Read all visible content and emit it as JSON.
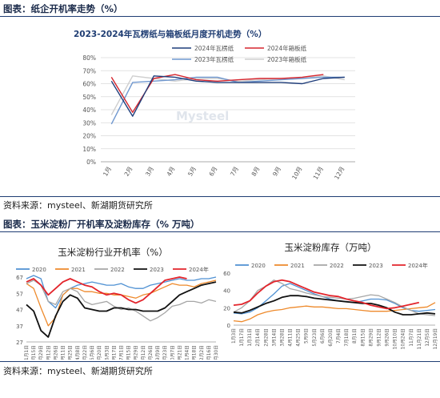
{
  "section1": {
    "caption": "图表：纸企开机率走势（%）",
    "source": "资料来源：mysteel、新湖期货研究所"
  },
  "section2": {
    "caption": "图表：玉米淀粉厂开机率及淀粉库存（% 万吨）",
    "source": "资料来源：mysteel、新湖期货研究所"
  },
  "watermark": "Mysteel",
  "chart_data": [
    {
      "type": "line",
      "title": "2023-2024年瓦楞纸与箱板纸月度开机走势（%）",
      "categories": [
        "1月",
        "2月",
        "3月",
        "4月",
        "5月",
        "6月",
        "7月",
        "8月",
        "9月",
        "10月",
        "11月",
        "12月"
      ],
      "ylim": [
        0,
        80
      ],
      "yticks": [
        0,
        10,
        20,
        30,
        40,
        50,
        60,
        70,
        80
      ],
      "ytick_labels": [
        "0%",
        "10%",
        "20%",
        "30%",
        "40%",
        "50%",
        "60%",
        "70%",
        "80%"
      ],
      "grid": true,
      "legend_position": "top",
      "series": [
        {
          "name": "2024年瓦楞纸",
          "color": "#1f3d7a",
          "width": 1.4,
          "values": [
            62,
            35,
            66,
            65,
            62,
            61,
            61,
            61,
            61,
            60,
            64,
            65
          ]
        },
        {
          "name": "2024年箱板纸",
          "color": "#d6262e",
          "width": 1.4,
          "values": [
            65,
            38,
            64,
            67,
            63,
            62,
            63,
            64,
            64,
            65,
            67,
            null
          ]
        },
        {
          "name": "2023年瓦楞纸",
          "color": "#6f97cf",
          "width": 1.4,
          "values": [
            29,
            61,
            62,
            63,
            65,
            65,
            61,
            62,
            63,
            64,
            65,
            65
          ]
        },
        {
          "name": "2023年箱板纸",
          "color": "#cfcfcf",
          "width": 1.4,
          "values": [
            36,
            66,
            64,
            62,
            64,
            64,
            62,
            63,
            64,
            64,
            66,
            63
          ]
        }
      ]
    },
    {
      "type": "line",
      "title": "玉米淀粉行业开机率（%）",
      "x_label_interval_days": 14,
      "x_tick_labels": [
        "1月1日",
        "1月15日",
        "1月29日",
        "2月12日",
        "2月26日",
        "3月11日",
        "3月25日",
        "4月8日",
        "4月22日",
        "5月6日",
        "5月20日",
        "6月3日",
        "6月17日",
        "7月1日",
        "7月15日",
        "7月29日",
        "8月12日",
        "8月26日",
        "9月9日",
        "9月23日",
        "10月7日",
        "10月21日",
        "11月4日",
        "11月18日",
        "12月2日",
        "12月16日",
        "12月30日"
      ],
      "ylim": [
        27,
        67
      ],
      "yticks": [
        27,
        37,
        47,
        57,
        67
      ],
      "grid": false,
      "legend_position": "top",
      "series": [
        {
          "name": "2020",
          "color": "#4f91d3",
          "width": 1.3,
          "values": [
            66,
            68,
            66,
            52,
            48,
            56,
            60,
            62,
            63,
            64,
            63,
            62,
            62,
            63,
            61,
            60,
            60,
            62,
            63,
            64,
            65,
            66,
            65,
            65,
            66,
            66,
            67
          ]
        },
        {
          "name": "2021",
          "color": "#ee8a2c",
          "width": 1.3,
          "values": [
            63,
            60,
            48,
            37,
            42,
            56,
            60,
            60,
            58,
            58,
            57,
            57,
            56,
            56,
            55,
            54,
            56,
            57,
            59,
            61,
            63,
            62,
            62,
            61,
            63,
            64,
            65
          ]
        },
        {
          "name": "2022",
          "color": "#a6a6a6",
          "width": 1.3,
          "values": [
            63,
            65,
            62,
            52,
            50,
            58,
            60,
            58,
            52,
            50,
            51,
            52,
            49,
            47,
            48,
            46,
            43,
            40,
            42,
            45,
            49,
            50,
            52,
            52,
            51,
            53,
            52
          ]
        },
        {
          "name": "2023",
          "color": "#111111",
          "width": 1.8,
          "values": [
            50,
            46,
            34,
            30,
            43,
            52,
            56,
            54,
            48,
            47,
            46,
            46,
            48,
            48,
            47,
            47,
            46,
            46,
            46,
            48,
            52,
            56,
            58,
            60,
            62,
            63,
            64
          ]
        },
        {
          "name": "2024年",
          "color": "#e3242b",
          "width": 1.8,
          "values": [
            64,
            66,
            62,
            56,
            60,
            64,
            66,
            64,
            62,
            61,
            58,
            56,
            57,
            56,
            53,
            51,
            53,
            57,
            61,
            65,
            66,
            67,
            66,
            null,
            null,
            null,
            null
          ]
        }
      ]
    },
    {
      "type": "line",
      "title": "玉米淀粉库存（万吨）",
      "x_tick_labels": [
        "1月3日",
        "1月17日",
        "1月31日",
        "2月14日",
        "2月28日",
        "3月14日",
        "3月28日",
        "4月11日",
        "4月25日",
        "5月9日",
        "5月23日",
        "6月6日",
        "6月20日",
        "7月4日",
        "7月18日",
        "8月1日",
        "8月15日",
        "8月29日",
        "9月12日",
        "9月26日",
        "10月10日",
        "10月24日",
        "11月7日",
        "11月21日",
        "12月5日",
        "12月19日"
      ],
      "ylim": [
        0,
        60
      ],
      "yticks": [
        0,
        20,
        40,
        60
      ],
      "grid": false,
      "legend_position": "top",
      "series": [
        {
          "name": "2020",
          "color": "#4f91d3",
          "width": 1.3,
          "values": [
            14,
            13,
            15,
            20,
            28,
            36,
            45,
            48,
            44,
            40,
            36,
            33,
            30,
            28,
            27,
            26,
            28,
            30,
            30,
            29,
            25,
            20,
            17,
            16,
            17,
            18
          ]
        },
        {
          "name": "2021",
          "color": "#ee8a2c",
          "width": 1.3,
          "values": [
            5,
            4,
            7,
            12,
            15,
            17,
            18,
            20,
            21,
            22,
            21,
            21,
            20,
            19,
            19,
            18,
            17,
            16,
            16,
            16,
            17,
            18,
            19,
            20,
            21,
            26
          ]
        },
        {
          "name": "2022",
          "color": "#a6a6a6",
          "width": 1.3,
          "values": [
            15,
            20,
            28,
            40,
            45,
            52,
            48,
            42,
            40,
            37,
            35,
            33,
            32,
            31,
            30,
            31,
            33,
            35,
            34,
            30,
            26,
            21,
            17,
            13,
            12,
            11
          ]
        },
        {
          "name": "2023",
          "color": "#111111",
          "width": 1.8,
          "values": [
            15,
            14,
            17,
            21,
            25,
            28,
            32,
            34,
            34,
            33,
            31,
            30,
            29,
            28,
            27,
            26,
            25,
            25,
            23,
            20,
            15,
            12,
            12,
            13,
            14,
            13
          ]
        },
        {
          "name": "2024年",
          "color": "#e3242b",
          "width": 1.8,
          "values": [
            23,
            24,
            28,
            37,
            45,
            50,
            52,
            50,
            46,
            42,
            38,
            36,
            34,
            33,
            30,
            28,
            26,
            23,
            21,
            19,
            20,
            22,
            24,
            26,
            null,
            null
          ]
        }
      ]
    }
  ]
}
